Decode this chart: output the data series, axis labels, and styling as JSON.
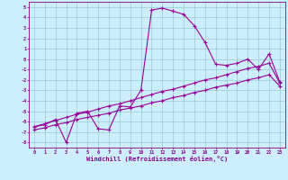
{
  "bg_color": "#cceeff",
  "line_color": "#990099",
  "grid_color": "#99cccc",
  "xlabel": "Windchill (Refroidissement éolien,°C)",
  "ylim": [
    -8.5,
    5.5
  ],
  "xlim": [
    -0.5,
    23.5
  ],
  "line1_y": [
    -6.5,
    -6.3,
    -5.8,
    -8.0,
    -5.2,
    -5.0,
    -6.7,
    -6.8,
    -4.5,
    -4.6,
    -3.0,
    4.7,
    4.9,
    4.6,
    4.3,
    3.2,
    1.6,
    -0.5,
    -0.6,
    -0.4,
    0.0,
    -1.0,
    0.5,
    -2.2
  ],
  "line2_y": [
    -6.5,
    -6.2,
    -5.9,
    -5.6,
    -5.3,
    -5.1,
    -4.8,
    -4.5,
    -4.3,
    -4.0,
    -3.7,
    -3.4,
    -3.1,
    -2.9,
    -2.6,
    -2.3,
    -2.0,
    -1.8,
    -1.5,
    -1.2,
    -0.9,
    -0.7,
    -0.4,
    -2.3
  ],
  "line3_y": [
    -6.8,
    -6.6,
    -6.3,
    -6.1,
    -5.8,
    -5.6,
    -5.4,
    -5.2,
    -4.9,
    -4.7,
    -4.5,
    -4.2,
    -4.0,
    -3.7,
    -3.5,
    -3.2,
    -3.0,
    -2.7,
    -2.5,
    -2.3,
    -2.0,
    -1.8,
    -1.5,
    -2.6
  ]
}
